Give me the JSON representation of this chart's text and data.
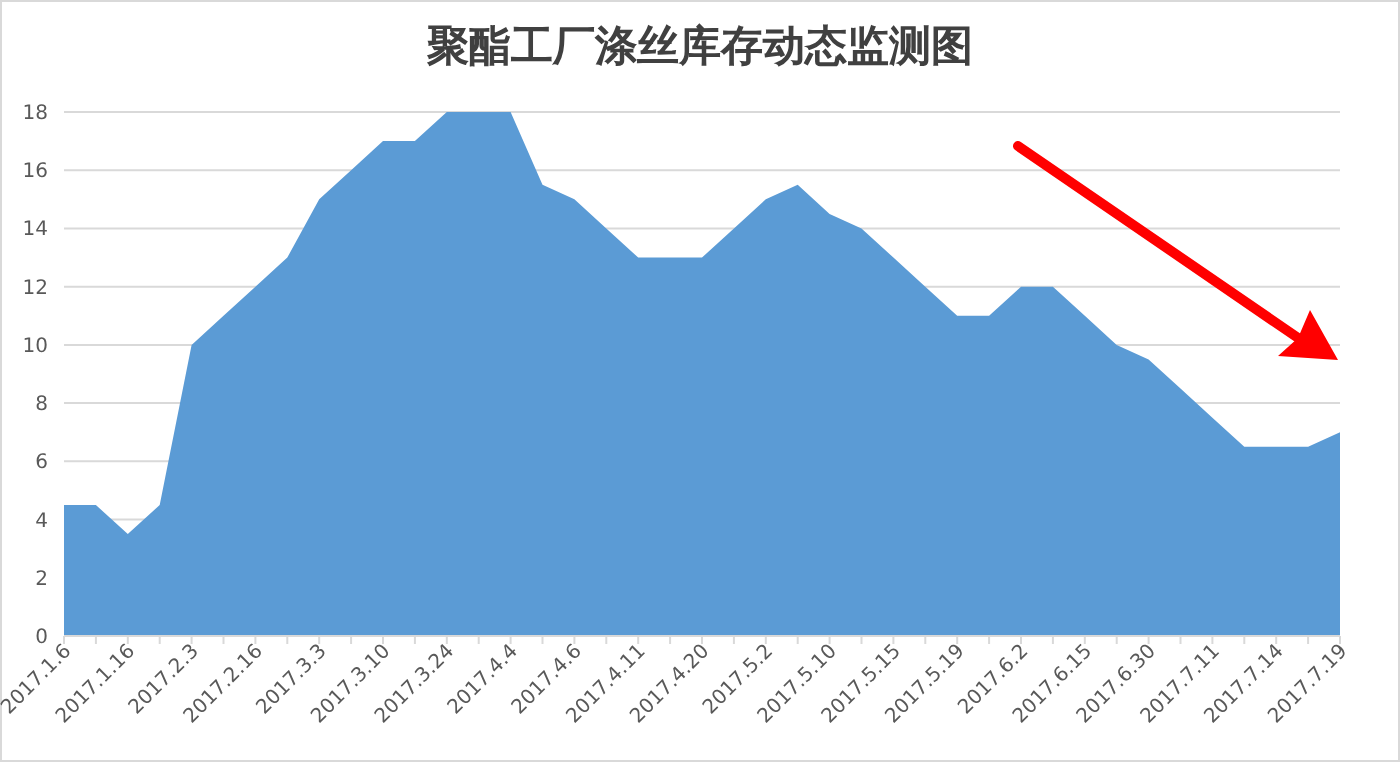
{
  "chart_data": {
    "type": "area",
    "title": "聚酯工厂涤丝库存动态监测图",
    "categories": [
      "2017.1.6",
      null,
      "2017.1.16",
      null,
      "2017.2.3",
      null,
      "2017.2.16",
      null,
      "2017.3.3",
      null,
      "2017.3.10",
      null,
      "2017.3.24",
      null,
      "2017.4.4",
      null,
      "2017.4.6",
      null,
      "2017.4.11",
      null,
      "2017.4.20",
      null,
      "2017.5.2",
      null,
      "2017.5.10",
      null,
      "2017.5.15",
      null,
      "2017.5.19",
      null,
      "2017.6.2",
      null,
      "2017.6.15",
      null,
      "2017.6.30",
      null,
      "2017.7.11",
      null,
      "2017.7.14",
      null,
      "2017.7.19"
    ],
    "series": [
      {
        "color": "#5b9bd5",
        "values": [
          4.5,
          4.5,
          3.5,
          4.5,
          10,
          11,
          12,
          13,
          15,
          16,
          17,
          17,
          18,
          18,
          18,
          15.5,
          15,
          14,
          13,
          13,
          13,
          14,
          15,
          15.5,
          14.5,
          14,
          13,
          12,
          11,
          11,
          12,
          12,
          11,
          10,
          9.5,
          8.5,
          7.5,
          6.5,
          6.5,
          6.5,
          7
        ]
      }
    ],
    "ylim": [
      0,
      18
    ],
    "yticks": [
      0,
      2,
      4,
      6,
      8,
      10,
      12,
      14,
      16,
      18
    ],
    "grid": "y"
  }
}
